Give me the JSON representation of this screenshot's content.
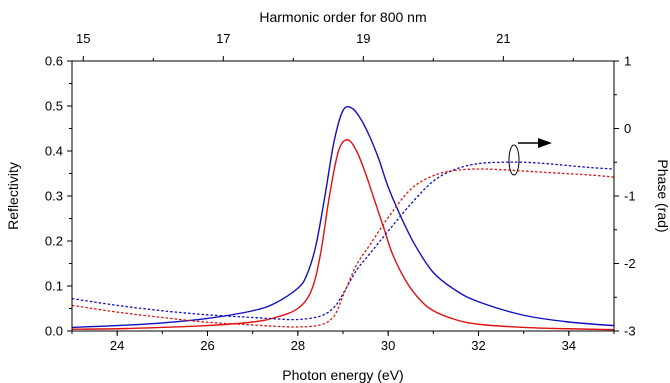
{
  "chart_data": {
    "type": "line",
    "xlabel": "Photon energy (eV)",
    "ylabel": "Reflectivity",
    "y2label": "Phase (rad)",
    "x2label": "Harmonic order for 800 nm",
    "xlim": [
      23,
      35
    ],
    "ylim": [
      0,
      0.6
    ],
    "y2lim": [
      -3,
      1
    ],
    "x_ticks": [
      "24",
      "26",
      "28",
      "30",
      "32",
      "34"
    ],
    "y_ticks": [
      "0.0",
      "0.1",
      "0.2",
      "0.3",
      "0.4",
      "0.5",
      "0.6"
    ],
    "y2_ticks": [
      "-3",
      "-2",
      "-1",
      "0",
      "1"
    ],
    "x2_ticks": [
      "15",
      "17",
      "19",
      "21"
    ],
    "x2_tick_positions_ev": [
      23.25,
      26.35,
      29.45,
      32.55
    ],
    "grid": false,
    "colors": {
      "blue": "#1010c0",
      "red": "#e01010"
    },
    "series": [
      {
        "axis": "left",
        "style": "solid",
        "color": "blue",
        "x": [
          23,
          24,
          25,
          26,
          27,
          27.5,
          28,
          28.2,
          28.4,
          28.6,
          28.8,
          29,
          29.2,
          29.4,
          29.6,
          29.8,
          30,
          30.3,
          30.6,
          31,
          31.5,
          32,
          33,
          34,
          35
        ],
        "y": [
          0.008,
          0.012,
          0.018,
          0.028,
          0.045,
          0.062,
          0.095,
          0.125,
          0.19,
          0.3,
          0.42,
          0.49,
          0.495,
          0.47,
          0.43,
          0.38,
          0.32,
          0.25,
          0.19,
          0.13,
          0.09,
          0.065,
          0.035,
          0.02,
          0.012
        ]
      },
      {
        "axis": "left",
        "style": "solid",
        "color": "red",
        "x": [
          23,
          24,
          25,
          26,
          27,
          27.5,
          28,
          28.3,
          28.5,
          28.7,
          28.9,
          29.1,
          29.3,
          29.5,
          29.7,
          29.9,
          30.1,
          30.4,
          30.7,
          31,
          31.5,
          32,
          33,
          34,
          35
        ],
        "y": [
          0.004,
          0.005,
          0.008,
          0.012,
          0.02,
          0.03,
          0.05,
          0.09,
          0.17,
          0.3,
          0.4,
          0.425,
          0.4,
          0.35,
          0.29,
          0.23,
          0.17,
          0.11,
          0.07,
          0.045,
          0.025,
          0.015,
          0.008,
          0.005,
          0.003
        ]
      },
      {
        "axis": "right",
        "style": "dashed",
        "color": "blue",
        "x": [
          23,
          24,
          25,
          26,
          27,
          27.5,
          28,
          28.5,
          28.8,
          29,
          29.3,
          29.6,
          30,
          30.5,
          31,
          31.5,
          32,
          32.5,
          33,
          33.5,
          34,
          34.5,
          35
        ],
        "y": [
          -2.52,
          -2.62,
          -2.7,
          -2.76,
          -2.8,
          -2.82,
          -2.83,
          -2.78,
          -2.65,
          -2.45,
          -2.1,
          -1.85,
          -1.52,
          -1.12,
          -0.78,
          -0.6,
          -0.52,
          -0.5,
          -0.5,
          -0.52,
          -0.55,
          -0.58,
          -0.6
        ]
      },
      {
        "axis": "right",
        "style": "dashed",
        "color": "red",
        "x": [
          23,
          24,
          25,
          26,
          27,
          27.5,
          28,
          28.5,
          28.8,
          29,
          29.3,
          29.6,
          30,
          30.5,
          31,
          31.5,
          32,
          32.5,
          33,
          33.5,
          34,
          34.5,
          35
        ],
        "y": [
          -2.62,
          -2.72,
          -2.8,
          -2.87,
          -2.91,
          -2.93,
          -2.94,
          -2.91,
          -2.78,
          -2.48,
          -2.02,
          -1.72,
          -1.32,
          -0.9,
          -0.7,
          -0.62,
          -0.6,
          -0.61,
          -0.63,
          -0.65,
          -0.67,
          -0.69,
          -0.72
        ]
      }
    ]
  }
}
